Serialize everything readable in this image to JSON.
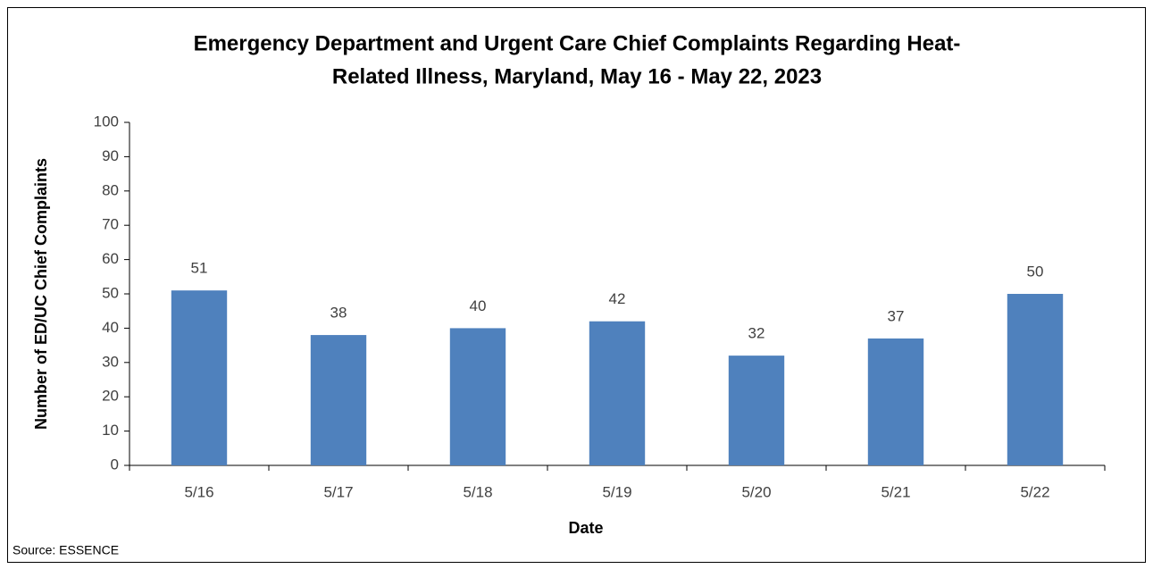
{
  "chart_data": {
    "type": "bar",
    "title": [
      "Emergency Department and Urgent Care Chief Complaints Regarding Heat-",
      "Related Illness, Maryland, May 16 - May 22, 2023"
    ],
    "x_label": "Date",
    "y_label": "Number of ED/UC Chief Complaints",
    "source": "Source: ESSENCE",
    "categories": [
      "5/16",
      "5/17",
      "5/18",
      "5/19",
      "5/20",
      "5/21",
      "5/22"
    ],
    "values": [
      51,
      38,
      40,
      42,
      32,
      37,
      50
    ],
    "color": "#4f81bd",
    "ylim": [
      0,
      100
    ],
    "yticks": [
      0,
      10,
      20,
      30,
      40,
      50,
      60,
      70,
      80,
      90,
      100
    ],
    "grid": false
  }
}
